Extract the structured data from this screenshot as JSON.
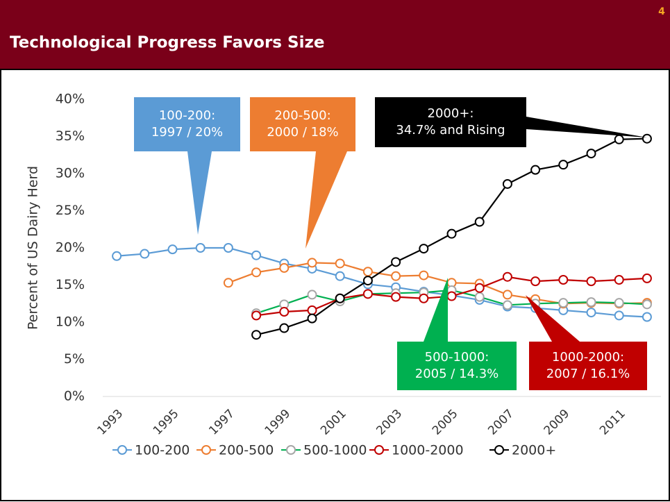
{
  "page_number": "4",
  "chart_data": {
    "type": "line",
    "title": "Technological Progress Favors Size",
    "y_label": "Percent of US Dairy Herd",
    "x": [
      1993,
      1994,
      1995,
      1996,
      1997,
      1998,
      1999,
      2000,
      2001,
      2002,
      2003,
      2004,
      2005,
      2006,
      2007,
      2008,
      2009,
      2010,
      2011,
      2012
    ],
    "xlim": [
      1992.5,
      2012.5
    ],
    "xticks": [
      1993,
      1995,
      1997,
      1999,
      2001,
      2003,
      2005,
      2007,
      2009,
      2011
    ],
    "ylim": [
      0,
      40
    ],
    "yticks": [
      {
        "value": 0,
        "label": "0%"
      },
      {
        "value": 5,
        "label": "5%"
      },
      {
        "value": 10,
        "label": "10%"
      },
      {
        "value": 15,
        "label": "15%"
      },
      {
        "value": 20,
        "label": "20%"
      },
      {
        "value": 25,
        "label": "25%"
      },
      {
        "value": 30,
        "label": "30%"
      },
      {
        "value": 35,
        "label": "35%"
      },
      {
        "value": 40,
        "label": "40%"
      }
    ],
    "legend": "bottom",
    "series": [
      {
        "name": "100-200",
        "color": "#5b9bd5",
        "marker_color": "#5b9bd5",
        "values": [
          18.9,
          19.2,
          19.8,
          20.0,
          20.0,
          19.0,
          17.9,
          17.2,
          16.2,
          15.1,
          14.7,
          14.1,
          13.6,
          13.0,
          12.1,
          11.9,
          11.6,
          11.3,
          10.9,
          10.7
        ]
      },
      {
        "name": "200-500",
        "color": "#ed7d31",
        "marker_color": "#ed7d31",
        "values": [
          null,
          null,
          null,
          null,
          15.3,
          16.7,
          17.3,
          18.0,
          17.9,
          16.8,
          16.2,
          16.3,
          15.3,
          15.2,
          13.7,
          13.1,
          12.5,
          12.6,
          12.5,
          12.6
        ]
      },
      {
        "name": "500-1000",
        "color": "#00b050",
        "marker_color": "#a6a6a6",
        "values": [
          null,
          null,
          null,
          null,
          null,
          11.2,
          12.4,
          13.7,
          12.8,
          13.8,
          13.9,
          14.0,
          14.3,
          13.4,
          12.3,
          12.5,
          12.6,
          12.7,
          12.6,
          12.4
        ]
      },
      {
        "name": "1000-2000",
        "color": "#c00000",
        "marker_color": "#c00000",
        "values": [
          null,
          null,
          null,
          null,
          null,
          10.9,
          11.4,
          11.6,
          13.2,
          13.8,
          13.4,
          13.2,
          13.5,
          14.6,
          16.1,
          15.5,
          15.7,
          15.5,
          15.7,
          15.9
        ]
      },
      {
        "name": "2000+",
        "color": "#000000",
        "marker_color": "#000000",
        "values": [
          null,
          null,
          null,
          null,
          null,
          8.3,
          9.2,
          10.5,
          13.2,
          15.6,
          18.1,
          19.9,
          21.9,
          23.5,
          28.6,
          30.5,
          31.2,
          32.7,
          34.6,
          34.7
        ]
      }
    ],
    "annotations": [
      {
        "lines": [
          "100-200:",
          "1997 / 20%"
        ],
        "color": "#5b9bd5"
      },
      {
        "lines": [
          "200-500:",
          "2000 / 18%"
        ],
        "color": "#ed7d31"
      },
      {
        "lines": [
          "2000+:",
          "34.7% and Rising"
        ],
        "color": "#000000"
      },
      {
        "lines": [
          "500-1000:",
          "2005 / 14.3%"
        ],
        "color": "#00b050"
      },
      {
        "lines": [
          "1000-2000:",
          "2007 / 16.1%"
        ],
        "color": "#c00000"
      }
    ]
  }
}
